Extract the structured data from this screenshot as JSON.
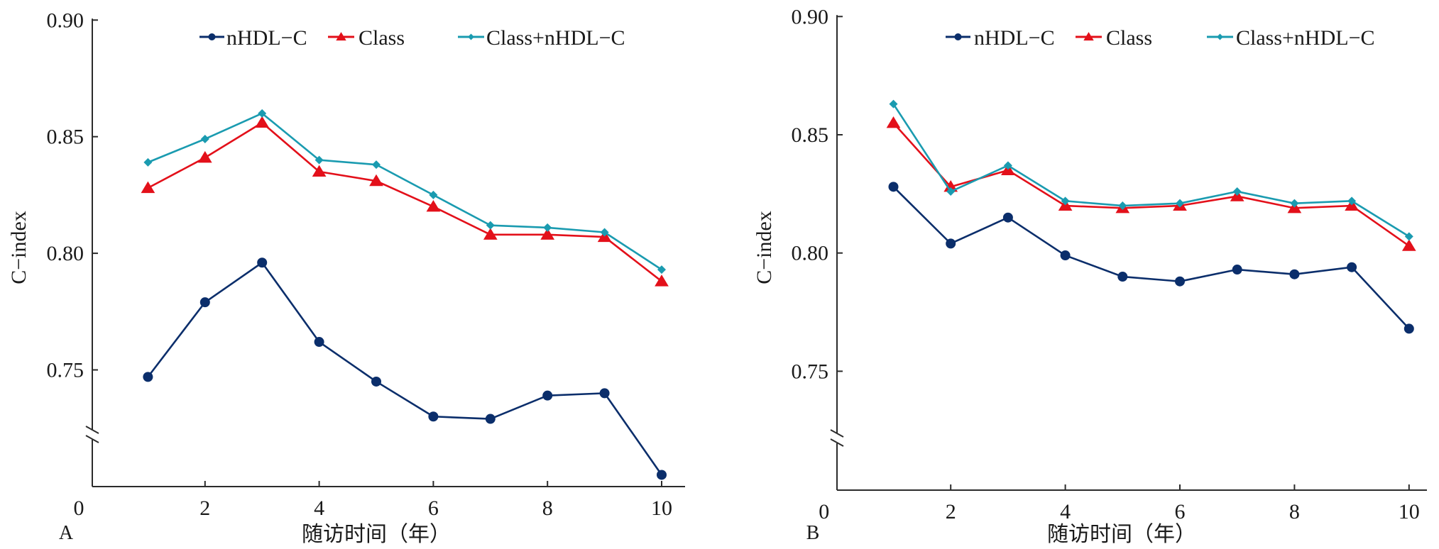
{
  "chart_data": [
    {
      "panel_label": "A",
      "type": "line",
      "title": "",
      "xlabel": "随访时间（年）",
      "ylabel": "C−index",
      "xlim": [
        0,
        10.4
      ],
      "ylim": [
        0.7,
        0.9
      ],
      "y_axis_break": true,
      "x_ticks": [
        0,
        2,
        4,
        6,
        8,
        10
      ],
      "x_tick_labels": [
        "0",
        "2",
        "4",
        "6",
        "8",
        "10"
      ],
      "y_ticks": [
        0.75,
        0.8,
        0.85,
        0.9
      ],
      "y_tick_labels": [
        "0.75",
        "0.80",
        "0.85",
        "0.90"
      ],
      "grid": false,
      "legend_position": "top",
      "x": [
        1,
        2,
        3,
        4,
        5,
        6,
        7,
        8,
        9,
        10
      ],
      "series": [
        {
          "name": "nHDL−C",
          "color": "#0b2e6b",
          "marker": "circle",
          "values": [
            0.747,
            0.779,
            0.796,
            0.762,
            0.745,
            0.73,
            0.729,
            0.739,
            0.74,
            0.705
          ]
        },
        {
          "name": "Class",
          "color": "#e3101a",
          "marker": "triangle",
          "values": [
            0.828,
            0.841,
            0.856,
            0.835,
            0.831,
            0.82,
            0.808,
            0.808,
            0.807,
            0.788
          ]
        },
        {
          "name": "Class+nHDL−C",
          "color": "#1a9bb0",
          "marker": "diamond",
          "values": [
            0.839,
            0.849,
            0.86,
            0.84,
            0.838,
            0.825,
            0.812,
            0.811,
            0.809,
            0.793
          ]
        }
      ]
    },
    {
      "panel_label": "B",
      "type": "line",
      "title": "",
      "xlabel": "随访时间（年）",
      "ylabel": "C−index",
      "xlim": [
        0,
        10.4
      ],
      "ylim": [
        0.7,
        0.9
      ],
      "y_axis_break": true,
      "x_ticks": [
        0,
        2,
        4,
        6,
        8,
        10
      ],
      "x_tick_labels": [
        "0",
        "2",
        "4",
        "6",
        "8",
        "10"
      ],
      "y_ticks": [
        0.75,
        0.8,
        0.85,
        0.9
      ],
      "y_tick_labels": [
        "0.75",
        "0.80",
        "0.85",
        "0.90"
      ],
      "grid": false,
      "legend_position": "top",
      "x": [
        1,
        2,
        3,
        4,
        5,
        6,
        7,
        8,
        9,
        10
      ],
      "series": [
        {
          "name": "nHDL−C",
          "color": "#0b2e6b",
          "marker": "circle",
          "values": [
            0.828,
            0.804,
            0.815,
            0.799,
            0.79,
            0.788,
            0.793,
            0.791,
            0.794,
            0.768
          ]
        },
        {
          "name": "Class",
          "color": "#e3101a",
          "marker": "triangle",
          "values": [
            0.855,
            0.828,
            0.835,
            0.82,
            0.819,
            0.82,
            0.824,
            0.819,
            0.82,
            0.803
          ]
        },
        {
          "name": "Class+nHDL−C",
          "color": "#1a9bb0",
          "marker": "diamond",
          "values": [
            0.863,
            0.826,
            0.837,
            0.822,
            0.82,
            0.821,
            0.826,
            0.821,
            0.822,
            0.807
          ]
        }
      ]
    }
  ]
}
